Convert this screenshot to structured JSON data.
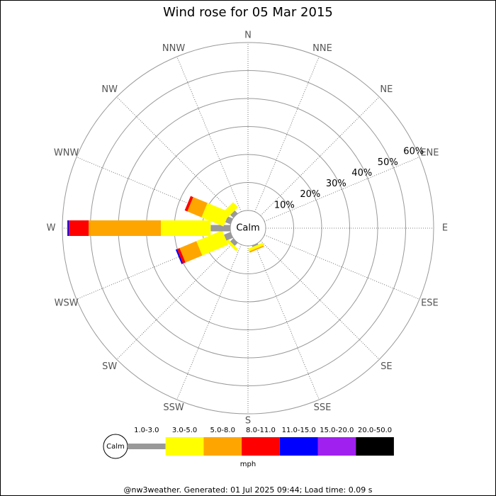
{
  "chart_data": {
    "type": "windrose",
    "title": "Wind rose for 05 Mar 2015",
    "categories": [
      "N",
      "NNE",
      "NE",
      "ENE",
      "E",
      "ESE",
      "SE",
      "SSE",
      "S",
      "SSW",
      "SW",
      "WSW",
      "W",
      "WNW",
      "NW",
      "NNW"
    ],
    "series": [
      {
        "name": "1.0-3.0",
        "color": "#999999",
        "values": [
          0,
          0,
          0,
          0,
          0,
          0,
          0,
          0.5,
          0,
          0,
          1.5,
          2.5,
          7.0,
          2.0,
          1.5,
          0
        ]
      },
      {
        "name": "3.0-5.0",
        "color": "#ffff00",
        "values": [
          0,
          0,
          0,
          0,
          0,
          0,
          0,
          1.0,
          0,
          0,
          1.0,
          10.0,
          17.8,
          8.5,
          2.5,
          0
        ]
      },
      {
        "name": "5.0-8.0",
        "color": "#ffa500",
        "values": [
          0,
          0,
          0,
          0,
          0,
          0,
          0,
          0.5,
          0,
          0,
          0,
          6.5,
          25.8,
          5.5,
          0,
          0
        ]
      },
      {
        "name": "8.0-11.0",
        "color": "#ff0000",
        "values": [
          0,
          0,
          0,
          0,
          0,
          0,
          0,
          0,
          0,
          0,
          0,
          1.0,
          7.1,
          1.0,
          0,
          0
        ]
      },
      {
        "name": "11.0-15.0",
        "color": "#0000ff",
        "values": [
          0,
          0,
          0,
          0,
          0,
          0,
          0,
          0,
          0,
          0,
          0,
          0.5,
          0.5,
          0,
          0,
          0
        ]
      },
      {
        "name": "15.0-20.0",
        "color": "#a020f0",
        "values": [
          0,
          0,
          0,
          0,
          0,
          0,
          0,
          0,
          0,
          0,
          0,
          0,
          0,
          0,
          0,
          0
        ]
      },
      {
        "name": "20.0-50.0",
        "color": "#000000",
        "values": [
          0,
          0,
          0,
          0,
          0,
          0,
          0,
          0,
          0,
          0,
          0,
          0,
          0,
          0,
          0,
          0
        ]
      }
    ],
    "rlim": [
      0,
      60
    ],
    "rticks": [
      {
        "value": 10,
        "label": "10%"
      },
      {
        "value": 20,
        "label": "20%"
      },
      {
        "value": 30,
        "label": "30%"
      },
      {
        "value": 40,
        "label": "40%"
      },
      {
        "value": 50,
        "label": "50%"
      },
      {
        "value": 60,
        "label": "60%"
      }
    ],
    "calm_label": "Calm",
    "legend_unit": "mph",
    "footer": "@nw3weather. Generated: 01 Jul 2025 09:44; Load time: 0.09 s"
  }
}
